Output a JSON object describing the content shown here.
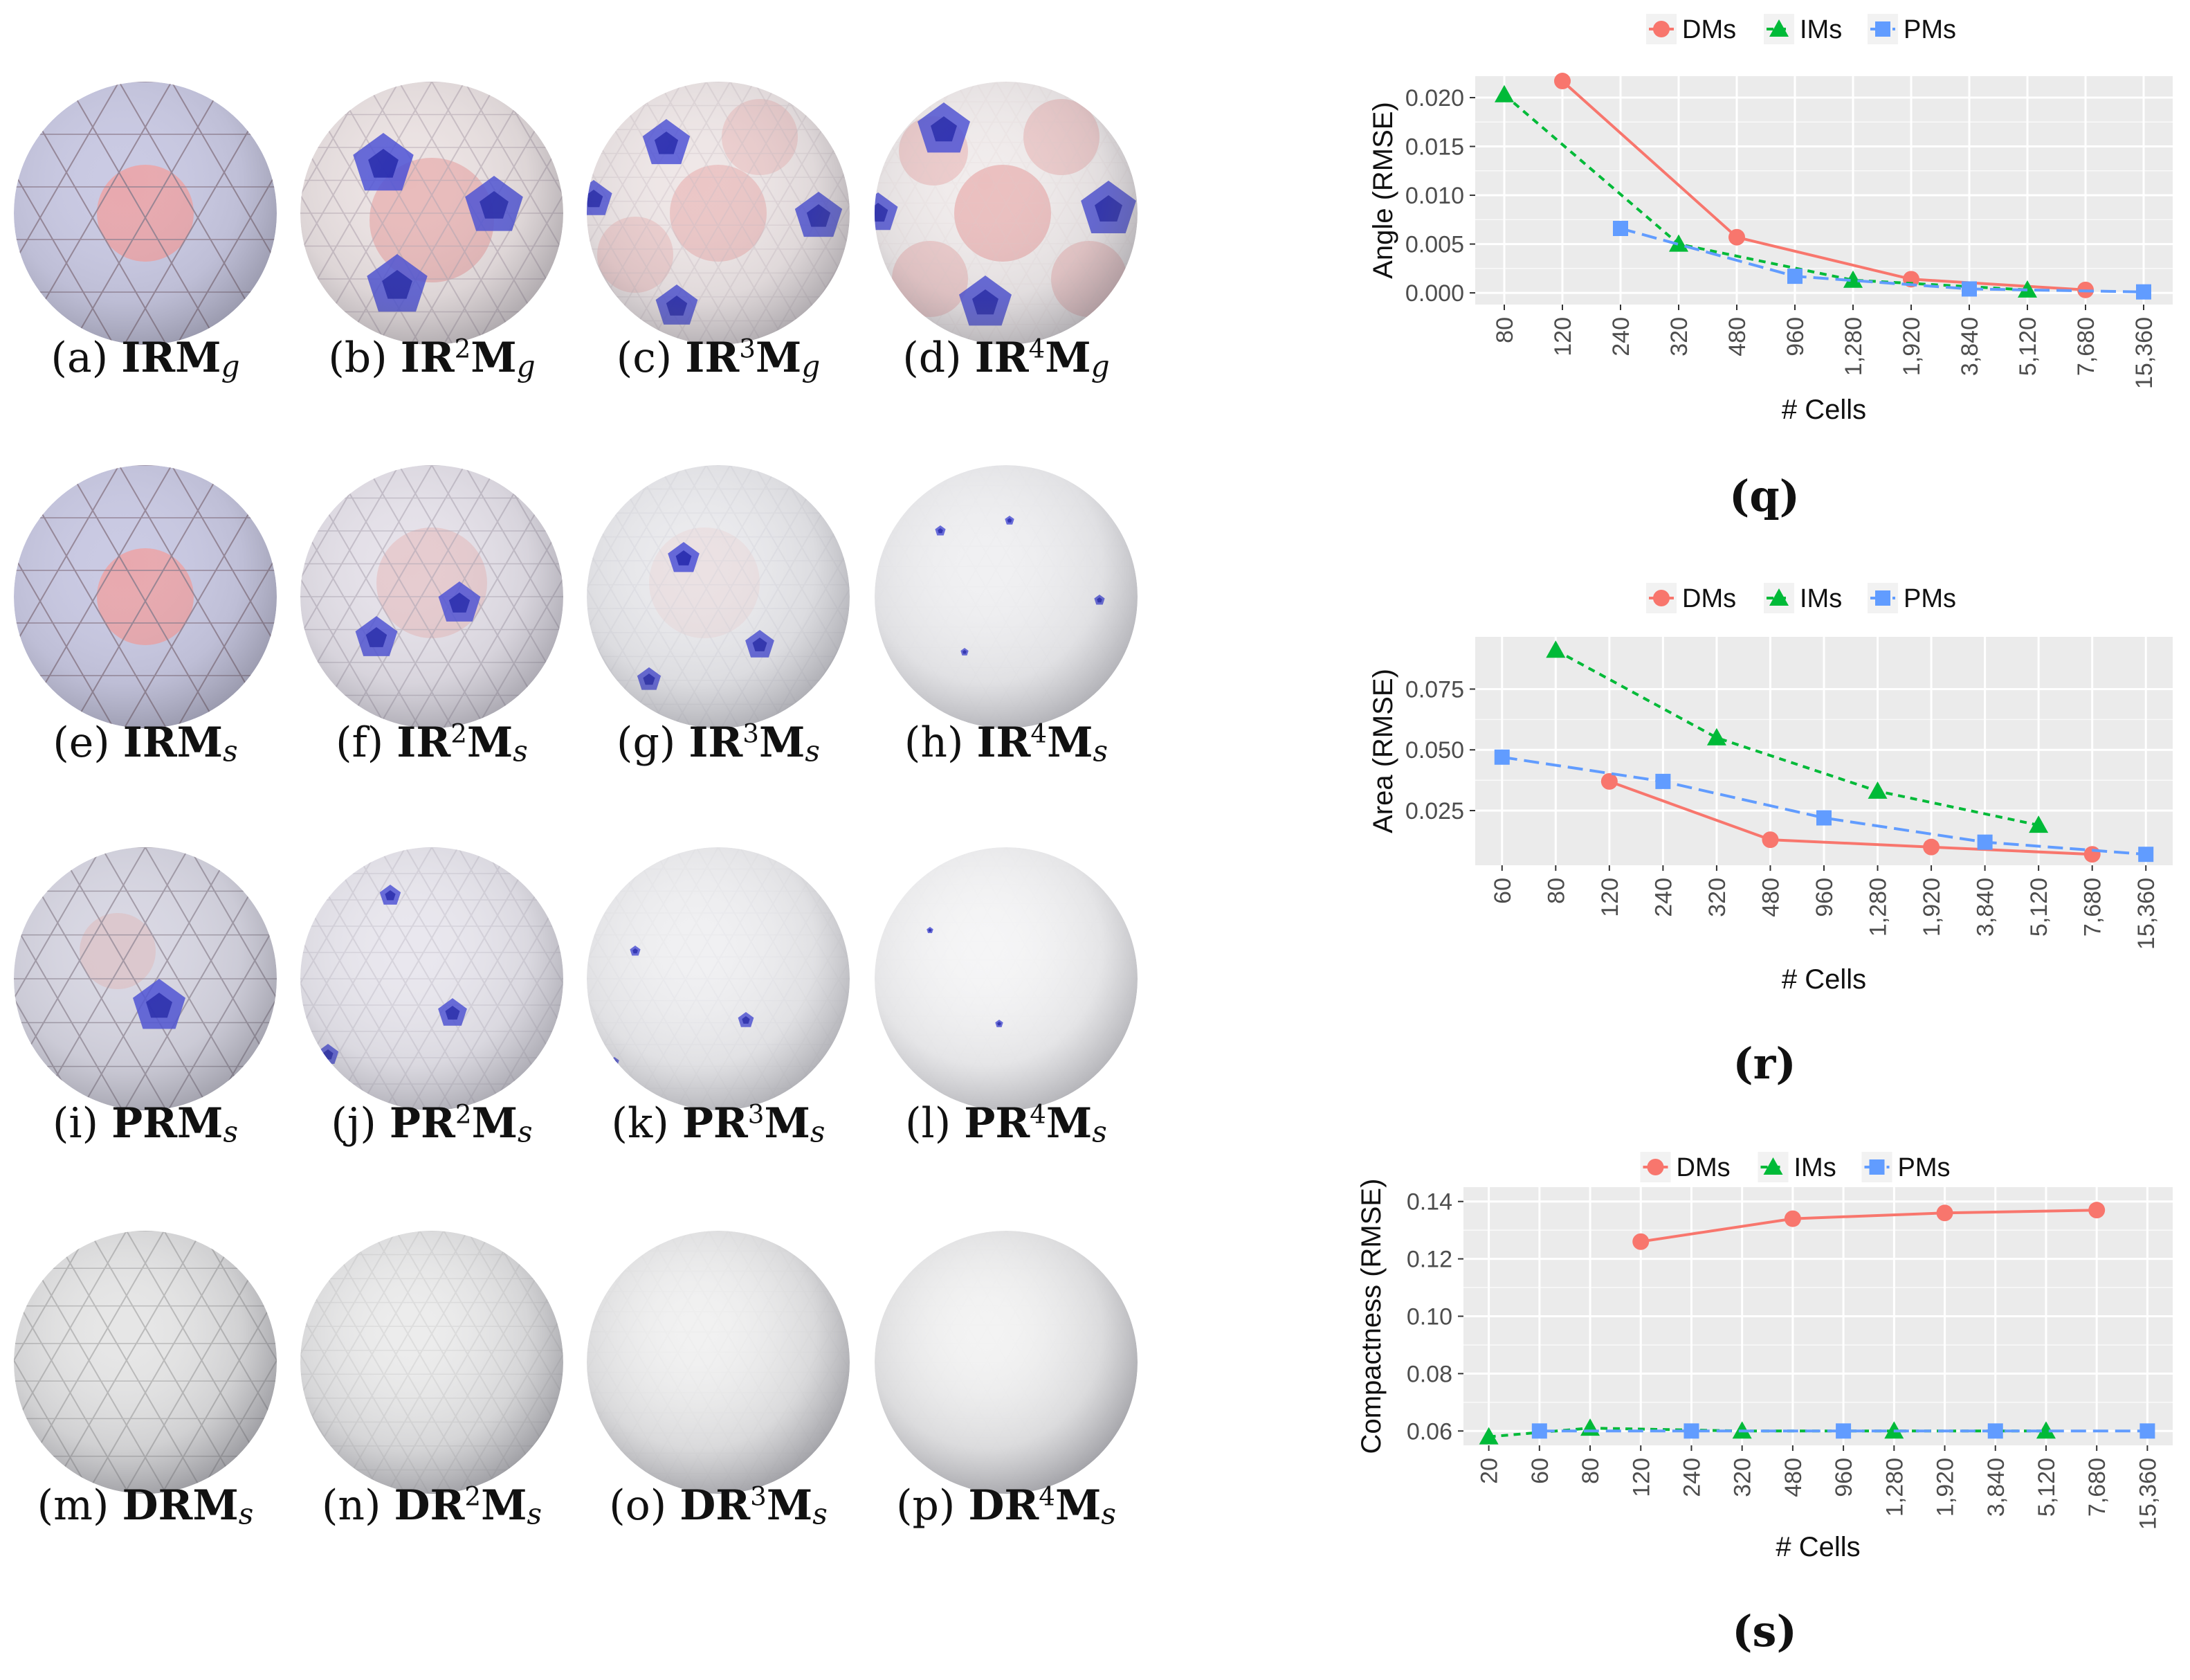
{
  "panels": [
    {
      "label": "(a)",
      "name": "IRM",
      "sup": "",
      "sub": "g",
      "style": "g1"
    },
    {
      "label": "(b)",
      "name": "IR",
      "sup": "2",
      "name2": "M",
      "sub": "g",
      "style": "g2"
    },
    {
      "label": "(c)",
      "name": "IR",
      "sup": "3",
      "name2": "M",
      "sub": "g",
      "style": "g3"
    },
    {
      "label": "(d)",
      "name": "IR",
      "sup": "4",
      "name2": "M",
      "sub": "g",
      "style": "g4"
    },
    {
      "label": "(e)",
      "name": "IRM",
      "sup": "",
      "sub": "s",
      "style": "s1"
    },
    {
      "label": "(f)",
      "name": "IR",
      "sup": "2",
      "name2": "M",
      "sub": "s",
      "style": "s2"
    },
    {
      "label": "(g)",
      "name": "IR",
      "sup": "3",
      "name2": "M",
      "sub": "s",
      "style": "s3"
    },
    {
      "label": "(h)",
      "name": "IR",
      "sup": "4",
      "name2": "M",
      "sub": "s",
      "style": "s4"
    },
    {
      "label": "(i)",
      "name": "PRM",
      "sup": "",
      "sub": "s",
      "style": "p1"
    },
    {
      "label": "(j)",
      "name": "PR",
      "sup": "2",
      "name2": "M",
      "sub": "s",
      "style": "p2"
    },
    {
      "label": "(k)",
      "name": "PR",
      "sup": "3",
      "name2": "M",
      "sub": "s",
      "style": "p3"
    },
    {
      "label": "(l)",
      "name": "PR",
      "sup": "4",
      "name2": "M",
      "sub": "s",
      "style": "p4"
    },
    {
      "label": "(m)",
      "name": "DRM",
      "sup": "",
      "sub": "s",
      "style": "d1"
    },
    {
      "label": "(n)",
      "name": "DR",
      "sup": "2",
      "name2": "M",
      "sub": "s",
      "style": "d2"
    },
    {
      "label": "(o)",
      "name": "DR",
      "sup": "3",
      "name2": "M",
      "sub": "s",
      "style": "d3"
    },
    {
      "label": "(p)",
      "name": "DR",
      "sup": "4",
      "name2": "M",
      "sub": "s",
      "style": "d4"
    }
  ],
  "colors": {
    "DMs": "#f8766d",
    "IMs": "#00ba38",
    "PMs": "#619cff",
    "panel_bg": "#ebebeb",
    "grid": "#ffffff"
  },
  "chart_data": [
    {
      "type": "line",
      "caption": "(q)",
      "xlabel": "# Cells",
      "ylabel": "Angle (RMSE)",
      "categories": [
        "80",
        "120",
        "240",
        "320",
        "480",
        "960",
        "1,280",
        "1,920",
        "3,840",
        "5,120",
        "7,680",
        "15,360"
      ],
      "ylim": [
        -0.0012,
        0.0222
      ],
      "yticks": [
        0.0,
        0.005,
        0.01,
        0.015,
        0.02
      ],
      "ytick_labels": [
        "0.000",
        "0.005",
        "0.010",
        "0.015",
        "0.020"
      ],
      "legend_position": "top",
      "series": [
        {
          "name": "DMs",
          "x": [
            "120",
            "480",
            "1,920",
            "7,680"
          ],
          "values": [
            0.0217,
            0.0057,
            0.0014,
            0.0003
          ]
        },
        {
          "name": "IMs",
          "x": [
            "80",
            "320",
            "1,280",
            "5,120"
          ],
          "values": [
            0.0203,
            0.005,
            0.0013,
            0.0003
          ]
        },
        {
          "name": "PMs",
          "x": [
            "240",
            "960",
            "3,840",
            "15,360"
          ],
          "values": [
            0.0066,
            0.0017,
            0.0004,
            0.0001
          ]
        }
      ]
    },
    {
      "type": "line",
      "caption": "(r)",
      "xlabel": "# Cells",
      "ylabel": "Area (RMSE)",
      "categories": [
        "60",
        "80",
        "120",
        "240",
        "320",
        "480",
        "960",
        "1,280",
        "1,920",
        "3,840",
        "5,120",
        "7,680",
        "15,360"
      ],
      "ylim": [
        0.0025,
        0.0965
      ],
      "yticks": [
        0.025,
        0.05,
        0.075
      ],
      "ytick_labels": [
        "0.025",
        "0.050",
        "0.075"
      ],
      "legend_position": "top",
      "series": [
        {
          "name": "DMs",
          "x": [
            "120",
            "480",
            "1,920",
            "7,680"
          ],
          "values": [
            0.037,
            0.013,
            0.01,
            0.007
          ]
        },
        {
          "name": "IMs",
          "x": [
            "80",
            "320",
            "1,280",
            "5,120"
          ],
          "values": [
            0.091,
            0.055,
            0.033,
            0.019
          ]
        },
        {
          "name": "PMs",
          "x": [
            "60",
            "240",
            "960",
            "3,840",
            "15,360"
          ],
          "values": [
            0.047,
            0.037,
            0.022,
            0.012,
            0.007
          ]
        }
      ]
    },
    {
      "type": "line",
      "caption": "(s)",
      "xlabel": "# Cells",
      "ylabel": "Compactness (RMSE)",
      "categories": [
        "20",
        "60",
        "80",
        "120",
        "240",
        "320",
        "480",
        "960",
        "1,280",
        "1,920",
        "3,840",
        "5,120",
        "7,680",
        "15,360"
      ],
      "ylim": [
        0.055,
        0.145
      ],
      "yticks": [
        0.06,
        0.08,
        0.1,
        0.12,
        0.14
      ],
      "ytick_labels": [
        "0.06",
        "0.08",
        "0.10",
        "0.12",
        "0.14"
      ],
      "legend_position": "top",
      "series": [
        {
          "name": "DMs",
          "x": [
            "120",
            "480",
            "1,920",
            "7,680"
          ],
          "values": [
            0.126,
            0.134,
            0.136,
            0.137
          ]
        },
        {
          "name": "IMs",
          "x": [
            "20",
            "80",
            "320",
            "1,280",
            "5,120"
          ],
          "values": [
            0.058,
            0.061,
            0.06,
            0.06,
            0.06
          ]
        },
        {
          "name": "PMs",
          "x": [
            "60",
            "240",
            "960",
            "3,840",
            "15,360"
          ],
          "values": [
            0.06,
            0.06,
            0.06,
            0.06,
            0.06
          ]
        }
      ]
    }
  ]
}
